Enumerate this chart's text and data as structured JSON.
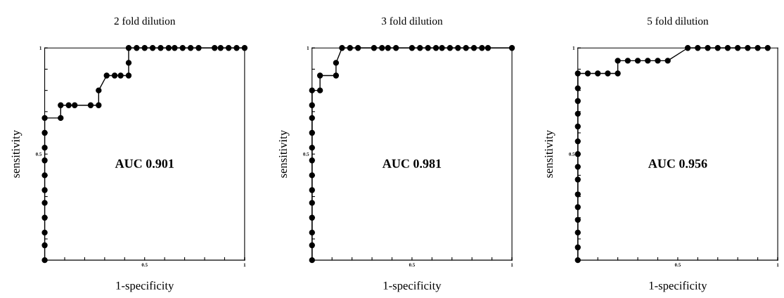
{
  "chart_data": [
    {
      "type": "line",
      "title": "2 fold dilution",
      "xlabel": "1-specificity",
      "ylabel": "sensitivity",
      "annotations": [
        "AUC 0.901"
      ],
      "marker": "circle",
      "line_style": "solid",
      "grid": false,
      "legend": false,
      "xlim": [
        0,
        1
      ],
      "ylim": [
        0,
        1
      ],
      "xticks": [
        {
          "value": 0.1,
          "label": null
        },
        {
          "value": 0.2,
          "label": null
        },
        {
          "value": 0.3,
          "label": null
        },
        {
          "value": 0.4,
          "label": null
        },
        0.5,
        {
          "value": 0.6,
          "label": null
        },
        {
          "value": 0.7,
          "label": null
        },
        {
          "value": 0.8,
          "label": null
        },
        {
          "value": 0.9,
          "label": null
        },
        1
      ],
      "yticks": [
        {
          "value": 0.1,
          "label": null
        },
        {
          "value": 0.2,
          "label": null
        },
        {
          "value": 0.3,
          "label": null
        },
        {
          "value": 0.4,
          "label": null
        },
        0.5,
        {
          "value": 0.6,
          "label": null
        },
        {
          "value": 0.7,
          "label": null
        },
        {
          "value": 0.8,
          "label": null
        },
        {
          "value": 0.9,
          "label": null
        },
        1
      ],
      "series": [
        {
          "color": "#000000",
          "x": [
            0,
            0,
            0,
            0,
            0,
            0,
            0,
            0,
            0,
            0,
            0,
            0.08,
            0.08,
            0.12,
            0.15,
            0.23,
            0.27,
            0.27,
            0.31,
            0.35,
            0.38,
            0.42,
            0.42,
            0.42,
            0.46,
            0.5,
            0.54,
            0.58,
            0.62,
            0.65,
            0.69,
            0.73,
            0.77,
            0.85,
            0.88,
            0.92,
            0.96,
            1
          ],
          "values": [
            0,
            0.07,
            0.13,
            0.2,
            0.27,
            0.33,
            0.4,
            0.47,
            0.53,
            0.6,
            0.67,
            0.67,
            0.73,
            0.73,
            0.73,
            0.73,
            0.73,
            0.8,
            0.87,
            0.87,
            0.87,
            0.87,
            0.93,
            1,
            1,
            1,
            1,
            1,
            1,
            1,
            1,
            1,
            1,
            1,
            1,
            1,
            1,
            1
          ]
        }
      ]
    },
    {
      "type": "line",
      "title": "3 fold dilution",
      "xlabel": "1-specificity",
      "ylabel": "sensitivity",
      "annotations": [
        "AUC 0.981"
      ],
      "marker": "circle",
      "line_style": "solid",
      "grid": false,
      "legend": false,
      "xlim": [
        0,
        1
      ],
      "ylim": [
        0,
        1
      ],
      "xticks": [
        {
          "value": 0.1,
          "label": null
        },
        {
          "value": 0.2,
          "label": null
        },
        {
          "value": 0.3,
          "label": null
        },
        {
          "value": 0.4,
          "label": null
        },
        0.5,
        {
          "value": 0.6,
          "label": null
        },
        {
          "value": 0.7,
          "label": null
        },
        {
          "value": 0.8,
          "label": null
        },
        {
          "value": 0.9,
          "label": null
        },
        1
      ],
      "yticks": [
        {
          "value": 0.1,
          "label": null
        },
        {
          "value": 0.2,
          "label": null
        },
        {
          "value": 0.3,
          "label": null
        },
        {
          "value": 0.4,
          "label": null
        },
        0.5,
        {
          "value": 0.6,
          "label": null
        },
        {
          "value": 0.7,
          "label": null
        },
        {
          "value": 0.8,
          "label": null
        },
        {
          "value": 0.9,
          "label": null
        },
        1
      ],
      "series": [
        {
          "color": "#000000",
          "x": [
            0,
            0,
            0,
            0,
            0,
            0,
            0,
            0,
            0,
            0,
            0,
            0,
            0,
            0.04,
            0.04,
            0.12,
            0.12,
            0.15,
            0.19,
            0.23,
            0.31,
            0.35,
            0.38,
            0.42,
            0.5,
            0.54,
            0.58,
            0.62,
            0.65,
            0.69,
            0.73,
            0.77,
            0.81,
            0.85,
            0.88,
            1
          ],
          "values": [
            0,
            0.07,
            0.13,
            0.2,
            0.27,
            0.33,
            0.4,
            0.47,
            0.53,
            0.6,
            0.67,
            0.73,
            0.8,
            0.8,
            0.87,
            0.87,
            0.93,
            1,
            1,
            1,
            1,
            1,
            1,
            1,
            1,
            1,
            1,
            1,
            1,
            1,
            1,
            1,
            1,
            1,
            1,
            1
          ]
        }
      ]
    },
    {
      "type": "line",
      "title": "5 fold dilution",
      "xlabel": "1-specificity",
      "ylabel": "sensitivity",
      "annotations": [
        "AUC 0.956"
      ],
      "marker": "circle",
      "line_style": "solid",
      "grid": false,
      "legend": false,
      "xlim": [
        0,
        1
      ],
      "ylim": [
        0,
        1
      ],
      "xticks": [
        {
          "value": 0.1,
          "label": null
        },
        {
          "value": 0.2,
          "label": null
        },
        {
          "value": 0.3,
          "label": null
        },
        {
          "value": 0.4,
          "label": null
        },
        0.5,
        {
          "value": 0.6,
          "label": null
        },
        {
          "value": 0.7,
          "label": null
        },
        {
          "value": 0.8,
          "label": null
        },
        {
          "value": 0.9,
          "label": null
        },
        1
      ],
      "yticks": [
        {
          "value": 0.1,
          "label": null
        },
        {
          "value": 0.2,
          "label": null
        },
        {
          "value": 0.3,
          "label": null
        },
        {
          "value": 0.4,
          "label": null
        },
        0.5,
        {
          "value": 0.6,
          "label": null
        },
        {
          "value": 0.7,
          "label": null
        },
        {
          "value": 0.8,
          "label": null
        },
        {
          "value": 0.9,
          "label": null
        },
        1
      ],
      "series": [
        {
          "color": "#000000",
          "x": [
            0,
            0,
            0,
            0,
            0,
            0,
            0,
            0,
            0,
            0,
            0,
            0,
            0,
            0,
            0,
            0.05,
            0.1,
            0.15,
            0.2,
            0.2,
            0.25,
            0.3,
            0.35,
            0.4,
            0.45,
            0.55,
            0.6,
            0.65,
            0.7,
            0.75,
            0.8,
            0.85,
            0.9,
            0.95
          ],
          "values": [
            0,
            0.06,
            0.13,
            0.19,
            0.25,
            0.31,
            0.38,
            0.44,
            0.5,
            0.56,
            0.63,
            0.69,
            0.75,
            0.81,
            0.88,
            0.88,
            0.88,
            0.88,
            0.88,
            0.94,
            0.94,
            0.94,
            0.94,
            0.94,
            0.94,
            1,
            1,
            1,
            1,
            1,
            1,
            1,
            1,
            1
          ]
        }
      ]
    }
  ]
}
